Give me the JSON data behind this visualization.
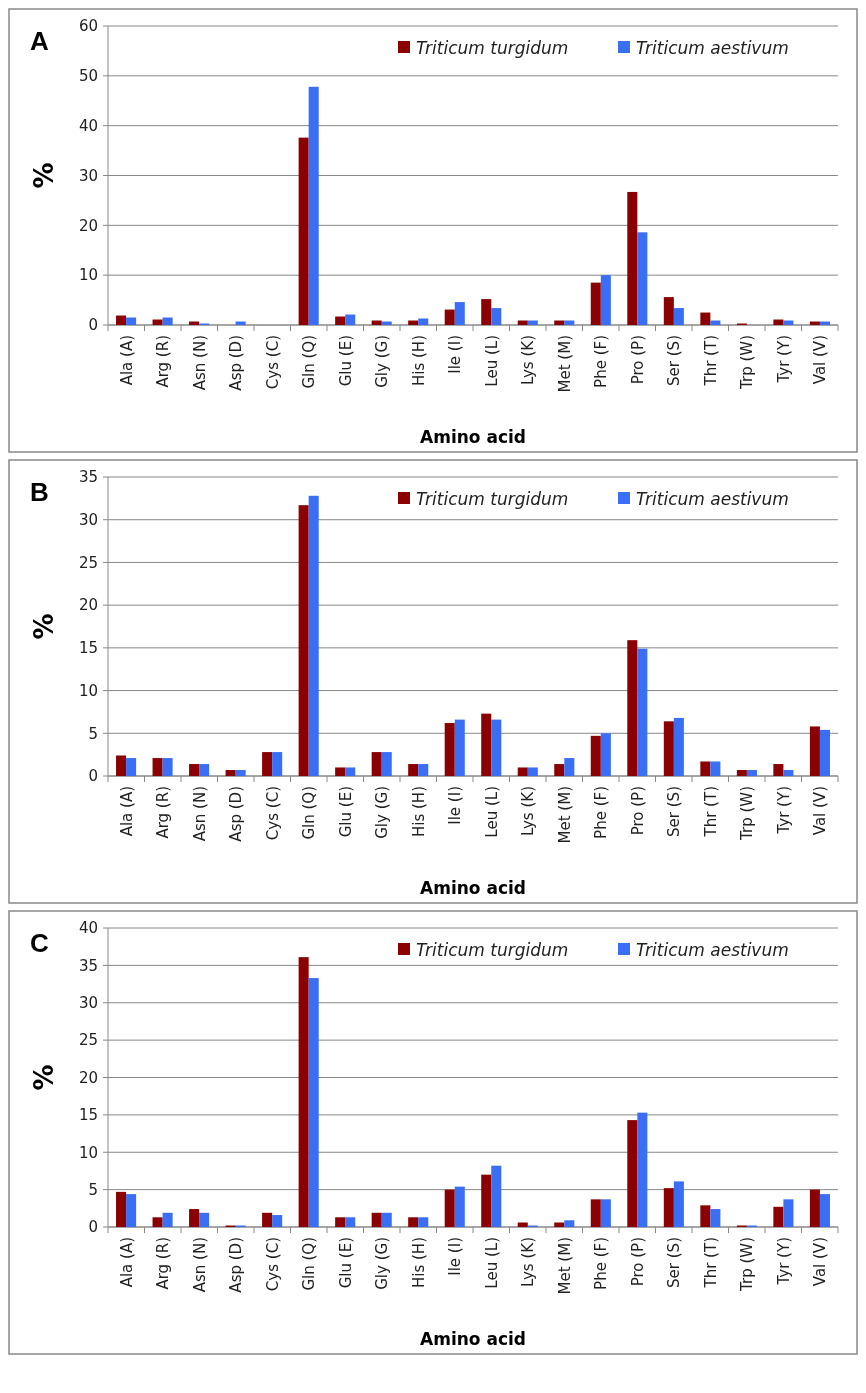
{
  "chart_data": [
    {
      "type": "bar",
      "title": "A",
      "xlabel": "Amino acid",
      "ylabel": "%",
      "categories": [
        "Ala (A)",
        "Arg (R)",
        "Asn (N)",
        "Asp (D)",
        "Cys (C)",
        "Gln (Q)",
        "Glu (E)",
        "Gly (G)",
        "His (H)",
        "Ile (I)",
        "Leu (L)",
        "Lys (K)",
        "Met (M)",
        "Phe (F)",
        "Pro (P)",
        "Ser (S)",
        "Thr (T)",
        "Trp (W)",
        "Tyr (Y)",
        "Val (V)"
      ],
      "ylim": [
        0,
        60
      ],
      "yticks": [
        0,
        10,
        20,
        30,
        40,
        50,
        60
      ],
      "grid": "y",
      "legend": "top right",
      "series": [
        {
          "name": "Triticum turgidum",
          "color": "#8b0000",
          "values": [
            1.9,
            1.1,
            0.7,
            0,
            0,
            37.6,
            1.7,
            0.9,
            0.9,
            3.1,
            5.2,
            0.9,
            0.9,
            8.5,
            26.7,
            5.6,
            2.5,
            0.3,
            1.1,
            0.7
          ]
        },
        {
          "name": "Triticum aestivum",
          "color": "#3a6ef5",
          "values": [
            1.5,
            1.5,
            0.3,
            0.7,
            0,
            47.8,
            2.1,
            0.7,
            1.3,
            4.6,
            3.4,
            0.9,
            0.9,
            10,
            18.6,
            3.4,
            0.9,
            0,
            0.9,
            0.7
          ]
        }
      ]
    },
    {
      "type": "bar",
      "title": "B",
      "xlabel": "Amino acid",
      "ylabel": "%",
      "categories": [
        "Ala (A)",
        "Arg (R)",
        "Asn (N)",
        "Asp (D)",
        "Cys (C)",
        "Gln (Q)",
        "Glu (E)",
        "Gly (G)",
        "His (H)",
        "Ile (I)",
        "Leu (L)",
        "Lys (K)",
        "Met (M)",
        "Phe (F)",
        "Pro (P)",
        "Ser (S)",
        "Thr (T)",
        "Trp (W)",
        "Tyr (Y)",
        "Val (V)"
      ],
      "ylim": [
        0,
        35
      ],
      "yticks": [
        0,
        5,
        10,
        15,
        20,
        25,
        30,
        35
      ],
      "grid": "y",
      "legend": "top right",
      "series": [
        {
          "name": "Triticum turgidum",
          "color": "#8b0000",
          "values": [
            2.4,
            2.1,
            1.4,
            0.7,
            2.8,
            31.7,
            1.0,
            2.8,
            1.4,
            6.2,
            7.3,
            1.0,
            1.4,
            4.7,
            15.9,
            6.4,
            1.7,
            0.7,
            1.4,
            5.8
          ]
        },
        {
          "name": "Triticum aestivum",
          "color": "#3a6ef5",
          "values": [
            2.1,
            2.1,
            1.4,
            0.7,
            2.8,
            32.8,
            1.0,
            2.8,
            1.4,
            6.6,
            6.6,
            1.0,
            2.1,
            5.0,
            14.9,
            6.8,
            1.7,
            0.7,
            0.7,
            5.4
          ]
        }
      ]
    },
    {
      "type": "bar",
      "title": "C",
      "xlabel": "Amino acid",
      "ylabel": "%",
      "categories": [
        "Ala (A)",
        "Arg (R)",
        "Asn (N)",
        "Asp (D)",
        "Cys (C)",
        "Gln (Q)",
        "Glu (E)",
        "Gly (G)",
        "His (H)",
        "Ile (I)",
        "Leu (L)",
        "Lys (K)",
        "Met (M)",
        "Phe (F)",
        "Pro (P)",
        "Ser (S)",
        "Thr (T)",
        "Trp (W)",
        "Tyr (Y)",
        "Val (V)"
      ],
      "ylim": [
        0,
        40
      ],
      "yticks": [
        0,
        5,
        10,
        15,
        20,
        25,
        30,
        35,
        40
      ],
      "grid": "y",
      "legend": "top right",
      "series": [
        {
          "name": "Triticum turgidum",
          "color": "#8b0000",
          "values": [
            4.7,
            1.3,
            2.4,
            0.2,
            1.9,
            36.1,
            1.3,
            1.9,
            1.3,
            5.0,
            7.0,
            0.6,
            0.6,
            3.7,
            14.3,
            5.2,
            2.9,
            0.2,
            2.7,
            5.0
          ]
        },
        {
          "name": "Triticum aestivum",
          "color": "#3a6ef5",
          "values": [
            4.4,
            1.9,
            1.9,
            0.2,
            1.6,
            33.3,
            1.3,
            1.9,
            1.3,
            5.4,
            8.2,
            0.2,
            0.9,
            3.7,
            15.3,
            6.1,
            2.4,
            0.2,
            3.7,
            4.4
          ]
        }
      ]
    }
  ]
}
